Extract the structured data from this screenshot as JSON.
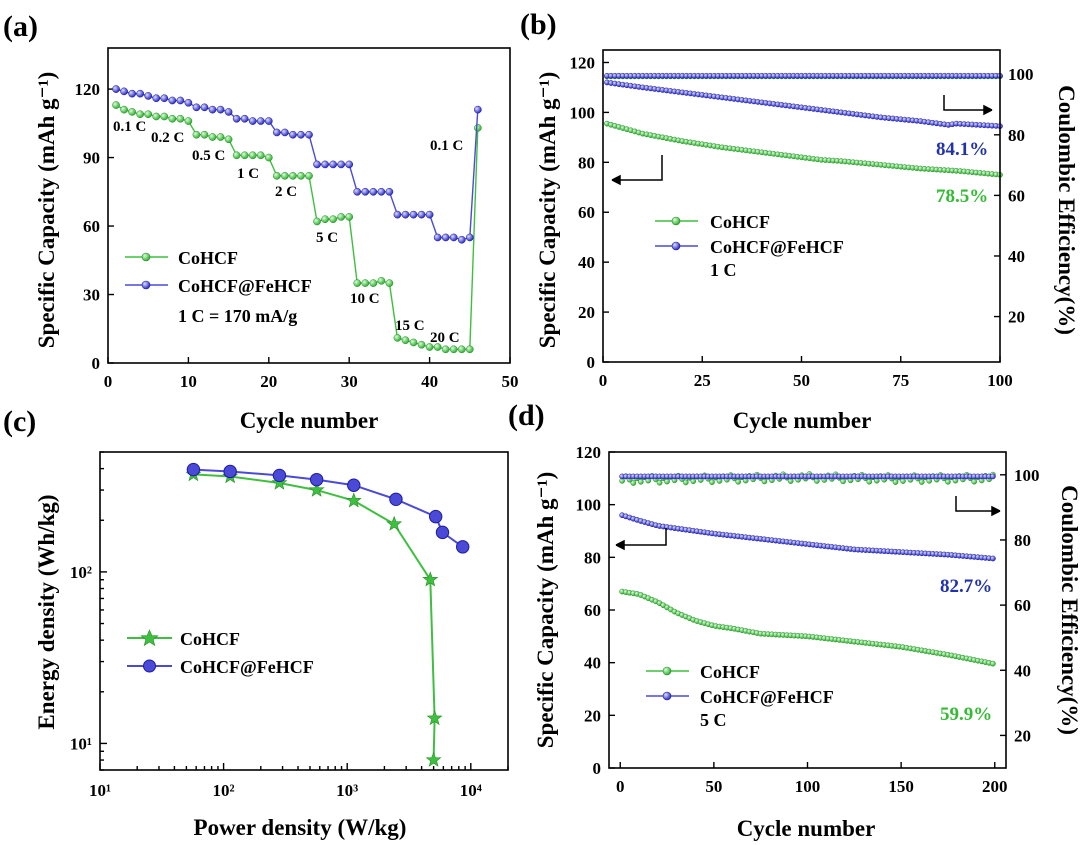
{
  "colors": {
    "green": "#3fbf3f",
    "green_dark": "#2a8f2a",
    "blue": "#4a4ad6",
    "blue_dark": "#1b1ba8",
    "pct_green": "#33bb33",
    "pct_blue": "#2233aa"
  },
  "panels": [
    {
      "id": "a",
      "label": "(a)",
      "chart_data": {
        "type": "line",
        "xlabel": "Cycle number",
        "ylabel": "Specific Capacity (mAh g⁻¹)",
        "xlim": [
          0,
          50
        ],
        "ylim": [
          0,
          138
        ],
        "xticks": [
          0,
          10,
          20,
          30,
          40,
          50
        ],
        "yticks": [
          0,
          30,
          60,
          90,
          120
        ],
        "series": [
          {
            "name": "CoHCF",
            "x": [
              1,
              2,
              3,
              4,
              5,
              6,
              7,
              8,
              9,
              10,
              11,
              12,
              13,
              14,
              15,
              16,
              17,
              18,
              19,
              20,
              21,
              22,
              23,
              24,
              25,
              26,
              27,
              28,
              29,
              30,
              31,
              32,
              33,
              34,
              35,
              36,
              37,
              38,
              39,
              40,
              41,
              42,
              43,
              44,
              45,
              46
            ],
            "y": [
              113,
              111,
              110,
              109,
              109,
              108,
              108,
              107,
              107,
              106,
              100,
              100,
              99,
              99,
              98,
              91,
              91,
              91,
              91,
              90,
              82,
              82,
              82,
              82,
              82,
              62,
              63,
              63,
              64,
              64,
              35,
              35,
              35,
              36,
              35,
              11,
              10,
              9,
              8,
              7,
              7,
              6,
              6,
              6,
              6,
              103
            ]
          },
          {
            "name": "CoHCF@FeHCF",
            "x": [
              1,
              2,
              3,
              4,
              5,
              6,
              7,
              8,
              9,
              10,
              11,
              12,
              13,
              14,
              15,
              16,
              17,
              18,
              19,
              20,
              21,
              22,
              23,
              24,
              25,
              26,
              27,
              28,
              29,
              30,
              31,
              32,
              33,
              34,
              35,
              36,
              37,
              38,
              39,
              40,
              41,
              42,
              43,
              44,
              45,
              46
            ],
            "y": [
              120,
              119,
              118,
              118,
              117,
              116,
              116,
              115,
              115,
              114,
              112,
              112,
              111,
              111,
              110,
              107,
              107,
              106,
              106,
              106,
              101,
              101,
              100,
              100,
              100,
              87,
              87,
              87,
              87,
              87,
              75,
              75,
              75,
              75,
              75,
              65,
              65,
              65,
              65,
              65,
              55,
              55,
              55,
              54,
              55,
              111
            ]
          }
        ],
        "legend": [
          "CoHCF",
          "CoHCF@FeHCF"
        ],
        "legend_note": "1 C = 170 mA/g",
        "rate_labels": [
          "0.1 C",
          "0.2 C",
          "0.5 C",
          "1 C",
          "2 C",
          "5 C",
          "10 C",
          "15 C",
          "20 C",
          "0.1 C"
        ]
      }
    },
    {
      "id": "b",
      "label": "(b)",
      "chart_data": {
        "type": "line",
        "xlabel": "Cycle number",
        "ylabel": "Specific Capacity (mAh g⁻¹)",
        "ylabel_right": "Coulombic Efficiency(%)",
        "xlim": [
          0,
          100
        ],
        "ylim": [
          0,
          125
        ],
        "ylim_right": [
          5,
          108
        ],
        "xticks": [
          0,
          25,
          50,
          75,
          100
        ],
        "yticks": [
          0,
          20,
          40,
          60,
          80,
          100,
          120
        ],
        "yticks_right": [
          20,
          40,
          60,
          80,
          100
        ],
        "series": [
          {
            "name": "CoHCF",
            "x": [
              1,
              10,
              20,
              30,
              40,
              50,
              55,
              60,
              70,
              80,
              90,
              100
            ],
            "y": [
              95.5,
              91.5,
              88.5,
              86,
              84,
              82,
              81,
              80.5,
              79,
              77.5,
              76.5,
              75
            ]
          },
          {
            "name": "CoHCF@FeHCF",
            "x": [
              1,
              10,
              20,
              30,
              40,
              50,
              60,
              70,
              80,
              87,
              89,
              100
            ],
            "y": [
              112,
              110,
              108,
              106,
              104,
              102,
              100,
              98,
              96.5,
              95,
              95.5,
              94.5
            ]
          },
          {
            "name": "CoHCF CE",
            "axis": "right",
            "x": [
              1,
              100
            ],
            "y": [
              99.3,
              99.3
            ]
          },
          {
            "name": "CoHCF@FeHCF CE",
            "axis": "right",
            "x": [
              1,
              100
            ],
            "y": [
              99.5,
              99.5
            ]
          }
        ],
        "legend": [
          "CoHCF",
          "CoHCF@FeHCF"
        ],
        "legend_note": "1 C",
        "annotations": [
          "84.1%",
          "78.5%"
        ]
      }
    },
    {
      "id": "c",
      "label": "(c)",
      "chart_data": {
        "type": "line",
        "scale": "log-log",
        "xlabel": "Power density (W/kg)",
        "ylabel": "Energy density (Wh/kg)",
        "xlim": [
          10,
          20000
        ],
        "ylim": [
          7,
          500
        ],
        "xtick_labels": [
          "10¹",
          "10²",
          "10³",
          "10⁴"
        ],
        "ytick_labels": [
          "10¹",
          "10²"
        ],
        "series": [
          {
            "name": "CoHCF",
            "x": [
              57,
              113,
              283,
              566,
              1130,
              2400,
              4700,
              5100,
              5000
            ],
            "y": [
              370,
              360,
              330,
              300,
              260,
              190,
              90,
              14,
              8
            ]
          },
          {
            "name": "CoHCF@FeHCF",
            "x": [
              57,
              113,
              283,
              566,
              1130,
              2480,
              5200,
              5900,
              8600
            ],
            "y": [
              395,
              385,
              365,
              345,
              320,
              265,
              210,
              170,
              140
            ]
          }
        ],
        "legend": [
          "CoHCF",
          "CoHCF@FeHCF"
        ]
      }
    },
    {
      "id": "d",
      "label": "(d)",
      "chart_data": {
        "type": "line",
        "xlabel": "Cycle number",
        "ylabel": "Specific Capacity (mAh g⁻¹)",
        "ylabel_right": "Coulombic Efficiency(%)",
        "xlim": [
          -6,
          206
        ],
        "ylim": [
          0,
          120
        ],
        "ylim_right": [
          10,
          107
        ],
        "xticks": [
          0,
          50,
          100,
          150,
          200
        ],
        "yticks": [
          0,
          20,
          40,
          60,
          80,
          100,
          120
        ],
        "yticks_right": [
          20,
          40,
          60,
          80,
          100
        ],
        "series": [
          {
            "name": "CoHCF",
            "x": [
              1,
              10,
              20,
              30,
              40,
              50,
              60,
              75,
              100,
              125,
              150,
              175,
              200
            ],
            "y": [
              67,
              66,
              63,
              59,
              56,
              54,
              53,
              51,
              50,
              48,
              46,
              43,
              39.5
            ]
          },
          {
            "name": "CoHCF@FeHCF",
            "x": [
              1,
              10,
              20,
              30,
              40,
              50,
              75,
              100,
              125,
              150,
              175,
              200
            ],
            "y": [
              96,
              94,
              92,
              91,
              90,
              89,
              87,
              85,
              83,
              82,
              81,
              79.5
            ]
          },
          {
            "name": "CoHCF CE",
            "axis": "right",
            "x": [
              1,
              50,
              100,
              150,
              200
            ],
            "y": [
              98.5,
              98.8,
              99.2,
              98.8,
              99
            ]
          },
          {
            "name": "CoHCF@FeHCF CE",
            "axis": "right",
            "x": [
              1,
              50,
              100,
              150,
              200
            ],
            "y": [
              99.5,
              99.5,
              99.5,
              99.5,
              99.5
            ]
          }
        ],
        "legend": [
          "CoHCF",
          "CoHCF@FeHCF"
        ],
        "legend_note": "5 C",
        "annotations": [
          "82.7%",
          "59.9%"
        ]
      }
    }
  ]
}
